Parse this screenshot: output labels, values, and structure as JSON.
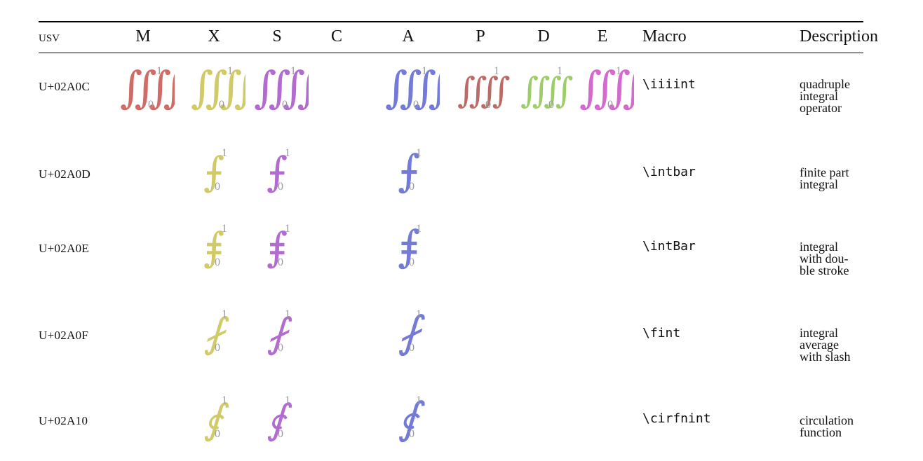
{
  "headers": {
    "usv": "usv",
    "fonts": [
      "M",
      "X",
      "S",
      "C",
      "A",
      "P",
      "D",
      "E"
    ],
    "macro": "Macro",
    "description": "Description"
  },
  "font_colors": {
    "M": "#c8524e",
    "X": "#c8c24e",
    "S": "#a452c8",
    "C": "",
    "A": "#5b63d0",
    "P": "#b0504c",
    "D": "#8cc44e",
    "E": "#cc50c6"
  },
  "limits": {
    "upper": "1",
    "lower": "0"
  },
  "rows": [
    {
      "usv": "U+02A0C",
      "macro": "\\iiiint",
      "description": [
        "quadruple",
        "integral",
        "operator"
      ],
      "glyph": "⨌",
      "fonts": [
        "M",
        "X",
        "S",
        "A",
        "P",
        "D",
        "E"
      ]
    },
    {
      "usv": "U+02A0D",
      "macro": "\\intbar",
      "description": [
        "finite part",
        "integral"
      ],
      "glyph": "⨍",
      "fonts": [
        "X",
        "S",
        "A"
      ]
    },
    {
      "usv": "U+02A0E",
      "macro": "\\intBar",
      "description": [
        "integral",
        "with dou-",
        "ble stroke"
      ],
      "glyph": "⨎",
      "fonts": [
        "X",
        "S",
        "A"
      ]
    },
    {
      "usv": "U+02A0F",
      "macro": "\\fint",
      "description": [
        "integral",
        "average",
        "with slash"
      ],
      "glyph": "⨏",
      "fonts": [
        "X",
        "S",
        "A"
      ]
    },
    {
      "usv": "U+02A10",
      "macro": "\\cirfnint",
      "description": [
        "circulation",
        "function"
      ],
      "glyph": "⨐",
      "fonts": [
        "X",
        "S",
        "A"
      ]
    }
  ]
}
